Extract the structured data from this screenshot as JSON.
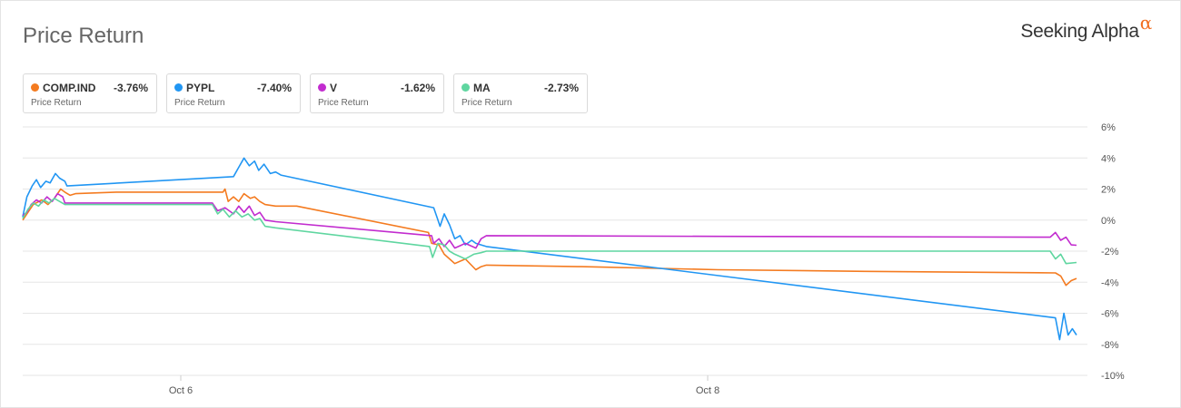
{
  "header": {
    "title": "Price Return",
    "brand_text": "Seeking Alpha",
    "brand_symbol": "α"
  },
  "legend": [
    {
      "symbol": "COMP.IND",
      "value": "-3.76%",
      "label": "Price Return",
      "color": "#f47b20"
    },
    {
      "symbol": "PYPL",
      "value": "-7.40%",
      "label": "Price Return",
      "color": "#2196f3"
    },
    {
      "symbol": "V",
      "value": "-1.62%",
      "label": "Price Return",
      "color": "#c22ccf"
    },
    {
      "symbol": "MA",
      "value": "-2.73%",
      "label": "Price Return",
      "color": "#5fd6a0"
    }
  ],
  "chart_data": {
    "type": "line",
    "ylim": [
      -10,
      6
    ],
    "y_ticks": [
      "6%",
      "4%",
      "2%",
      "0%",
      "-2%",
      "-4%",
      "-6%",
      "-8%",
      "-10%"
    ],
    "y_tick_values": [
      6,
      4,
      2,
      0,
      -2,
      -4,
      -6,
      -8,
      -10
    ],
    "xlim": [
      0,
      100
    ],
    "x_ticks": [
      {
        "x": 15,
        "label": "Oct 6"
      },
      {
        "x": 65,
        "label": "Oct 8"
      }
    ],
    "grid": true,
    "series": [
      {
        "name": "COMP.IND",
        "color": "#f47b20",
        "points": [
          [
            0,
            0
          ],
          [
            0.5,
            0.5
          ],
          [
            1,
            1
          ],
          [
            1.8,
            1.3
          ],
          [
            2.4,
            1.0
          ],
          [
            3,
            1.4
          ],
          [
            3.6,
            2.0
          ],
          [
            4,
            1.8
          ],
          [
            4.5,
            1.6
          ],
          [
            5,
            1.7
          ],
          [
            9,
            1.8
          ],
          [
            19,
            1.8
          ],
          [
            19.2,
            2.0
          ],
          [
            19.5,
            1.2
          ],
          [
            20,
            1.5
          ],
          [
            20.5,
            1.2
          ],
          [
            21,
            1.7
          ],
          [
            21.6,
            1.4
          ],
          [
            22,
            1.5
          ],
          [
            22.5,
            1.2
          ],
          [
            23,
            1.0
          ],
          [
            24,
            0.9
          ],
          [
            26,
            0.9
          ],
          [
            38.5,
            -0.8
          ],
          [
            38.8,
            -1.5
          ],
          [
            39.5,
            -1.6
          ],
          [
            40,
            -2.2
          ],
          [
            41,
            -2.8
          ],
          [
            42,
            -2.5
          ],
          [
            43,
            -3.2
          ],
          [
            43.5,
            -3.0
          ],
          [
            44,
            -2.9
          ],
          [
            53,
            -3.0
          ],
          [
            66,
            -3.2
          ],
          [
            80,
            -3.3
          ],
          [
            98,
            -3.4
          ],
          [
            98.5,
            -3.6
          ],
          [
            99,
            -4.2
          ],
          [
            99.5,
            -3.9
          ],
          [
            100,
            -3.76
          ]
        ]
      },
      {
        "name": "PYPL",
        "color": "#2196f3",
        "points": [
          [
            0,
            0.2
          ],
          [
            0.4,
            1.5
          ],
          [
            0.9,
            2.2
          ],
          [
            1.3,
            2.6
          ],
          [
            1.7,
            2.1
          ],
          [
            2.2,
            2.5
          ],
          [
            2.6,
            2.4
          ],
          [
            3.1,
            3.0
          ],
          [
            3.5,
            2.7
          ],
          [
            4,
            2.5
          ],
          [
            4.2,
            2.2
          ],
          [
            20,
            2.8
          ],
          [
            20.5,
            3.4
          ],
          [
            21,
            4.0
          ],
          [
            21.5,
            3.5
          ],
          [
            22,
            3.8
          ],
          [
            22.4,
            3.2
          ],
          [
            22.9,
            3.6
          ],
          [
            23.5,
            3.0
          ],
          [
            24,
            3.1
          ],
          [
            24.5,
            2.9
          ],
          [
            39,
            0.8
          ],
          [
            39.3,
            0.2
          ],
          [
            39.6,
            -0.4
          ],
          [
            40,
            0.4
          ],
          [
            40.5,
            -0.3
          ],
          [
            41,
            -1.2
          ],
          [
            41.5,
            -1.0
          ],
          [
            42,
            -1.6
          ],
          [
            42.6,
            -1.3
          ],
          [
            43,
            -1.5
          ],
          [
            44,
            -1.7
          ],
          [
            98,
            -6.3
          ],
          [
            98.4,
            -7.7
          ],
          [
            98.8,
            -6.0
          ],
          [
            99.2,
            -7.4
          ],
          [
            99.6,
            -7.0
          ],
          [
            100,
            -7.4
          ]
        ]
      },
      {
        "name": "V",
        "color": "#c22ccf",
        "points": [
          [
            0,
            0.3
          ],
          [
            0.4,
            0.5
          ],
          [
            0.8,
            1.0
          ],
          [
            1.3,
            1.3
          ],
          [
            1.8,
            1.1
          ],
          [
            2.3,
            1.5
          ],
          [
            2.8,
            1.2
          ],
          [
            3.3,
            1.7
          ],
          [
            3.8,
            1.5
          ],
          [
            4,
            1.1
          ],
          [
            9,
            1.1
          ],
          [
            18,
            1.1
          ],
          [
            18.5,
            0.6
          ],
          [
            19.2,
            0.8
          ],
          [
            20,
            0.4
          ],
          [
            20.5,
            0.9
          ],
          [
            21,
            0.5
          ],
          [
            21.5,
            0.9
          ],
          [
            22,
            0.3
          ],
          [
            22.5,
            0.5
          ],
          [
            23,
            0
          ],
          [
            24,
            -0.1
          ],
          [
            38.8,
            -1.0
          ],
          [
            39,
            -1.5
          ],
          [
            39.5,
            -1.2
          ],
          [
            40,
            -1.7
          ],
          [
            40.5,
            -1.3
          ],
          [
            41,
            -1.8
          ],
          [
            42,
            -1.5
          ],
          [
            43,
            -1.8
          ],
          [
            43.5,
            -1.2
          ],
          [
            44,
            -1.0
          ],
          [
            66,
            -1.05
          ],
          [
            97.5,
            -1.1
          ],
          [
            98,
            -0.8
          ],
          [
            98.5,
            -1.3
          ],
          [
            99,
            -1.1
          ],
          [
            99.5,
            -1.6
          ],
          [
            100,
            -1.62
          ]
        ]
      },
      {
        "name": "MA",
        "color": "#5fd6a0",
        "points": [
          [
            0,
            0.1
          ],
          [
            0.5,
            0.7
          ],
          [
            1,
            1.1
          ],
          [
            1.5,
            0.9
          ],
          [
            2,
            1.3
          ],
          [
            2.5,
            1.1
          ],
          [
            3,
            1.4
          ],
          [
            3.5,
            1.2
          ],
          [
            4,
            1.0
          ],
          [
            9,
            1.0
          ],
          [
            18,
            1.0
          ],
          [
            18.5,
            0.4
          ],
          [
            19,
            0.7
          ],
          [
            19.6,
            0.2
          ],
          [
            20.2,
            0.6
          ],
          [
            20.8,
            0.2
          ],
          [
            21.4,
            0.4
          ],
          [
            22,
            0.0
          ],
          [
            22.5,
            0.1
          ],
          [
            23,
            -0.4
          ],
          [
            24,
            -0.5
          ],
          [
            38.6,
            -1.7
          ],
          [
            38.9,
            -2.4
          ],
          [
            39.4,
            -1.5
          ],
          [
            40,
            -1.6
          ],
          [
            40.5,
            -2.0
          ],
          [
            41,
            -2.2
          ],
          [
            42,
            -2.5
          ],
          [
            42.8,
            -2.2
          ],
          [
            43.5,
            -2.1
          ],
          [
            44,
            -2.0
          ],
          [
            66,
            -2.0
          ],
          [
            97.5,
            -2.0
          ],
          [
            98,
            -2.5
          ],
          [
            98.5,
            -2.2
          ],
          [
            99,
            -2.8
          ],
          [
            100,
            -2.73
          ]
        ]
      }
    ]
  }
}
